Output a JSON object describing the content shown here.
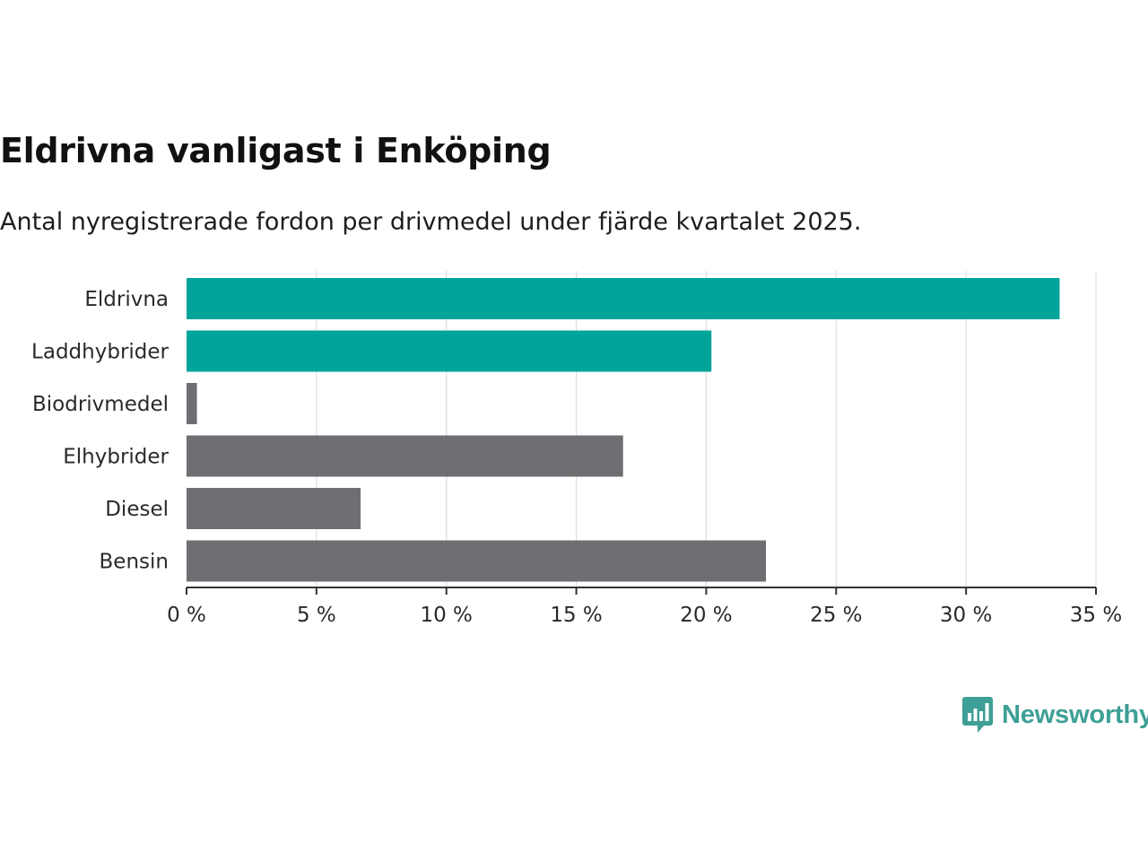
{
  "header": {
    "title": "Eldrivna vanligast i Enköping",
    "subtitle": "Antal nyregistrerade fordon per drivmedel under fjärde kvartalet 2025."
  },
  "brand": {
    "name": "Newsworthy",
    "icon": "newsworthy-logo-icon",
    "color": "#3e9f96"
  },
  "colors": {
    "highlight": "#00a49a",
    "default": "#6e6e73",
    "grid": "#dddddd",
    "axis": "#333333"
  },
  "chart_data": {
    "type": "bar",
    "orientation": "horizontal",
    "title": "Eldrivna vanligast i Enköping",
    "subtitle": "Antal nyregistrerade fordon per drivmedel under fjärde kvartalet 2025.",
    "xlabel": "",
    "ylabel": "",
    "unit": "%",
    "categories": [
      "Eldrivna",
      "Laddhybrider",
      "Biodrivmedel",
      "Elhybrider",
      "Diesel",
      "Bensin"
    ],
    "values": [
      33.6,
      20.2,
      0.4,
      16.8,
      6.7,
      22.3
    ],
    "highlighted": [
      true,
      true,
      false,
      false,
      false,
      false
    ],
    "xlim": [
      0,
      35
    ],
    "ticks": [
      0,
      5,
      10,
      15,
      20,
      25,
      30,
      35
    ],
    "tick_labels": [
      "0 %",
      "5 %",
      "10 %",
      "15 %",
      "20 %",
      "25 %",
      "30 %",
      "35 %"
    ],
    "grid": true,
    "legend": "none"
  }
}
